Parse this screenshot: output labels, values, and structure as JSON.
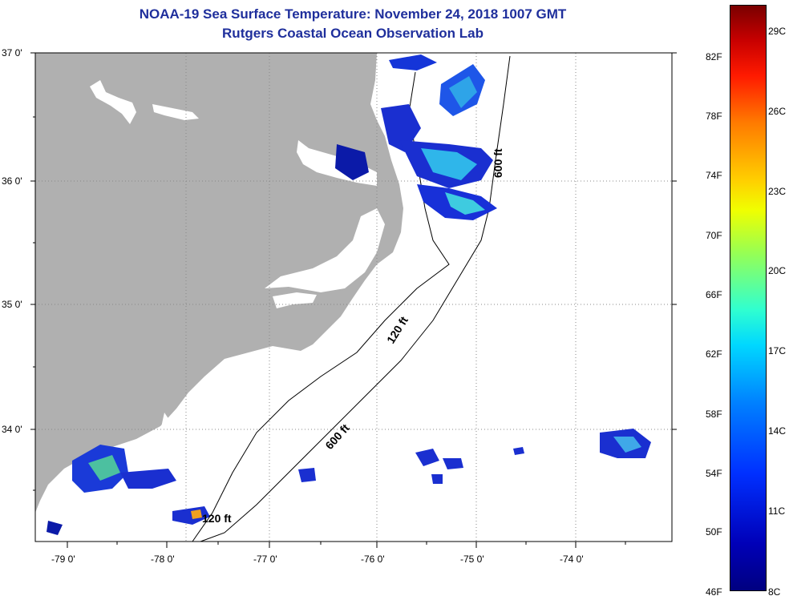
{
  "title": "NOAA-19 Sea Surface Temperature:  November 24, 2018 1007 GMT",
  "subtitle": "Rutgers Coastal Ocean Observation Lab",
  "lat_labels": [
    "37 0'",
    "36 0'",
    "35 0'",
    "34 0'"
  ],
  "lon_labels": [
    "-79 0'",
    "-78 0'",
    "-77 0'",
    "-76 0'",
    "-75 0'",
    "-74 0'"
  ],
  "contour_labels": {
    "c600_north": "600 ft",
    "c120_mid": "120 ft",
    "c600_south": "600 ft",
    "c120_south": "120 ft"
  },
  "colorbar": {
    "fahrenheit": [
      "82F",
      "78F",
      "74F",
      "70F",
      "66F",
      "62F",
      "58F",
      "54F",
      "50F",
      "46F"
    ],
    "celsius": [
      "29C",
      "26C",
      "23C",
      "20C",
      "17C",
      "14C",
      "11C",
      "8C"
    ]
  },
  "colors": {
    "land": "#b0b0b0",
    "title": "#1f2f9c",
    "water": "#ffffff"
  }
}
